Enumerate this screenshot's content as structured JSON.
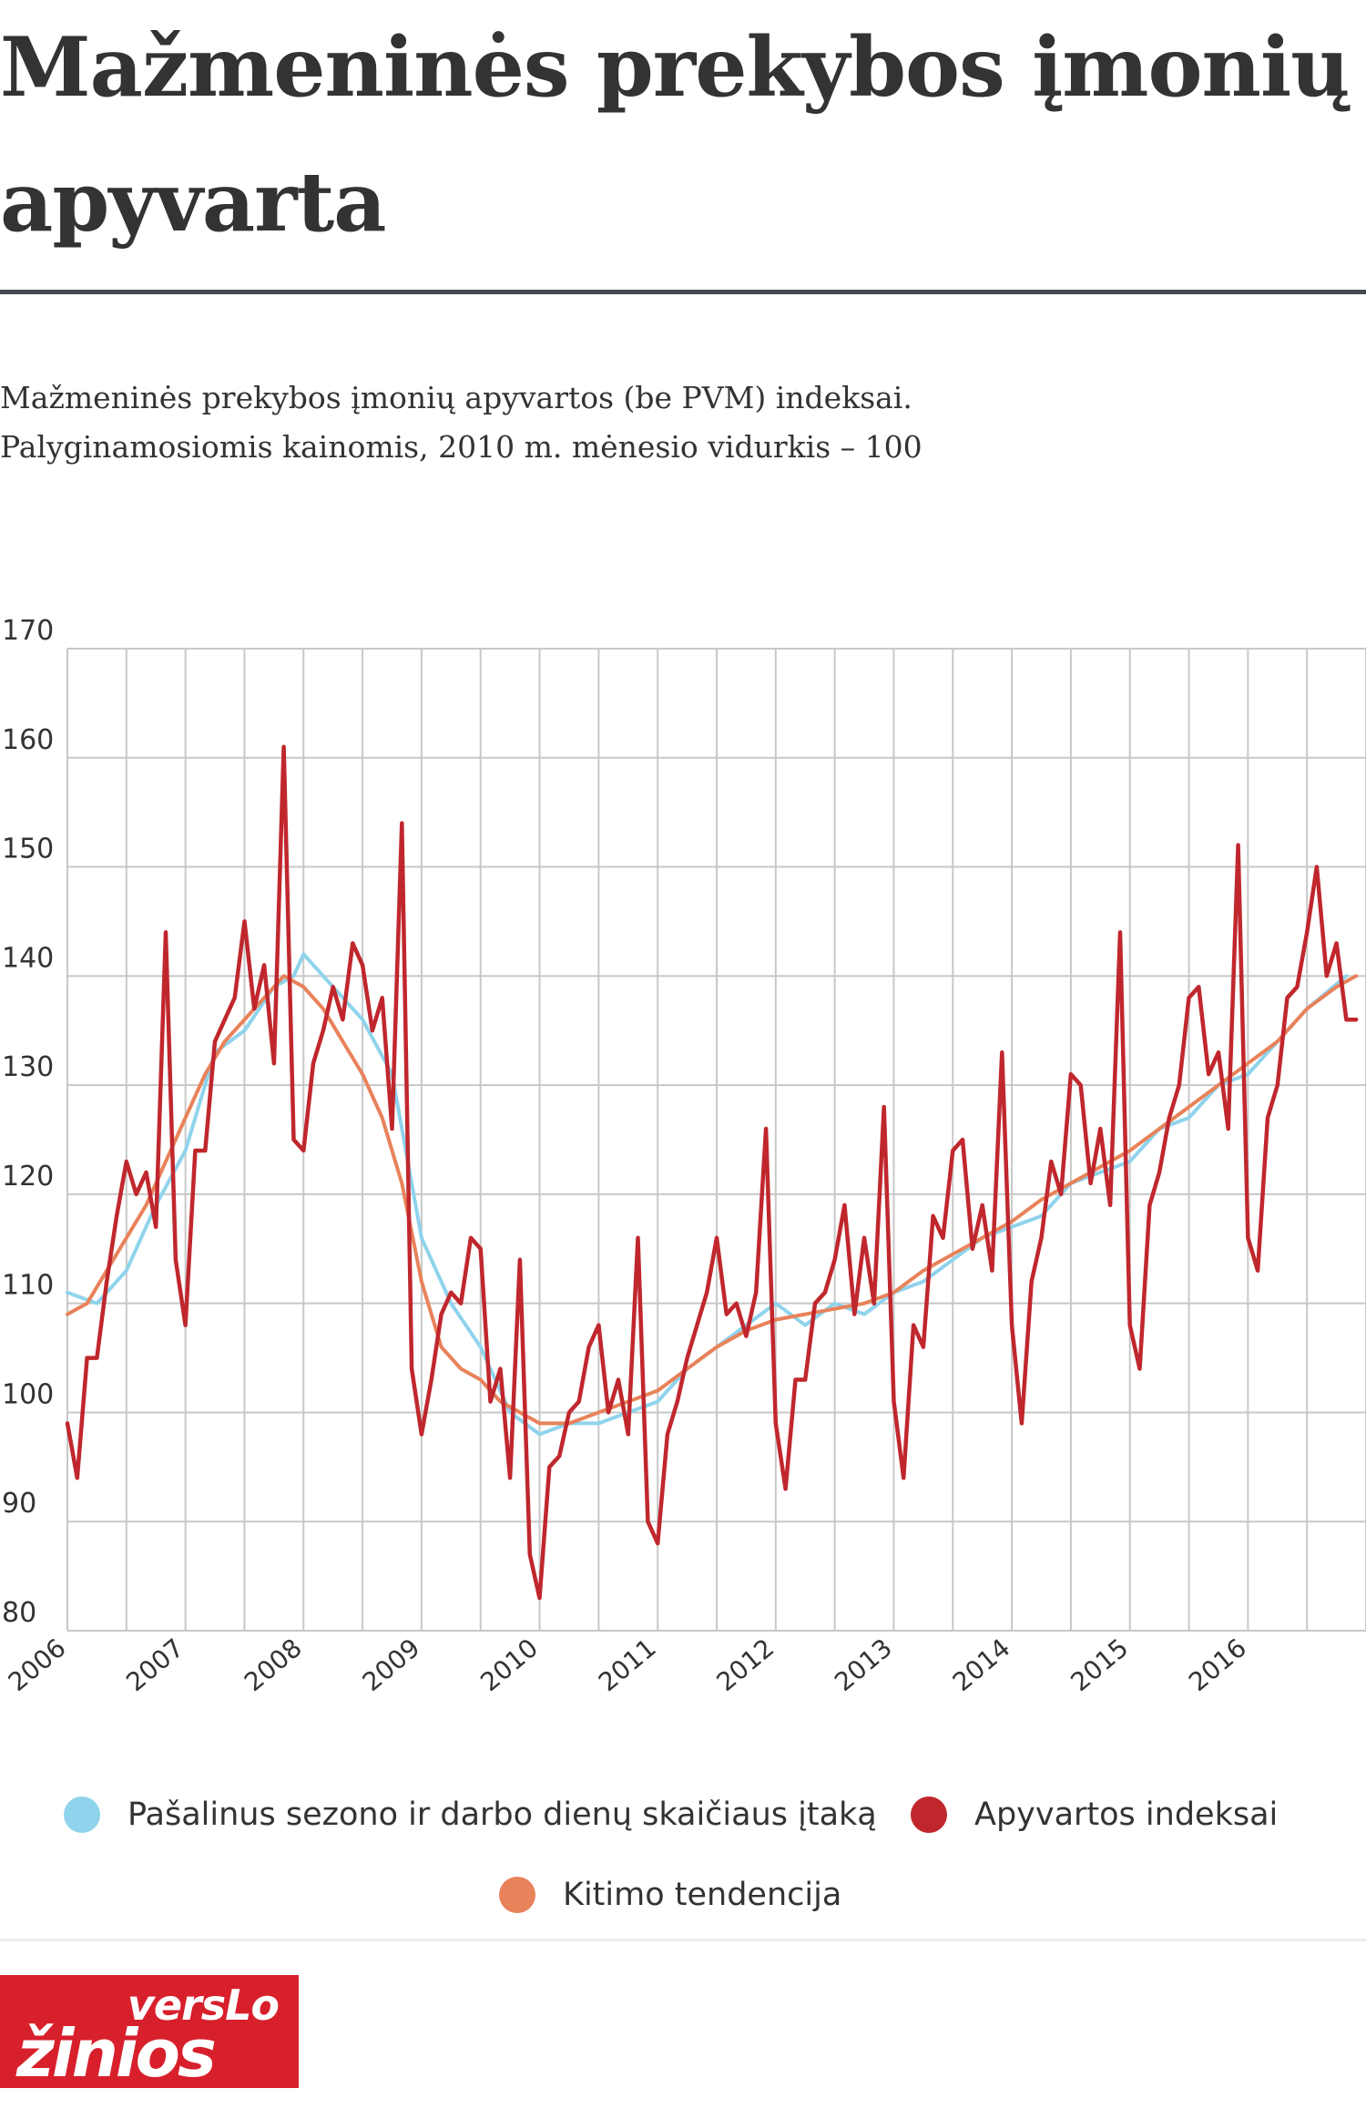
{
  "title": "Mažmeninės prekybos įmonių apyvarta",
  "subtitle_lines": [
    "Mažmeninės prekybos įmonių apyvartos (be PVM) indeksai.",
    "Palyginamosiomis kainomis, 2010 m. mėnesio vidurkis – 100"
  ],
  "legend": {
    "seasonal": "Pašalinus sezono ir darbo dienų skaičiaus įtaką",
    "turnover": "Apyvartos indeksai",
    "trend": "Kitimo tendencija"
  },
  "logo": {
    "line1": "versLo",
    "line2": "žinios"
  },
  "colors": {
    "seasonal": "#8fd3ec",
    "turnover": "#c0272d",
    "trend": "#e8825a",
    "grid": "#c8c8c8",
    "text": "#333333",
    "logo_bg": "#d81f2c"
  },
  "chart_data": {
    "type": "line",
    "ylim": [
      80,
      170
    ],
    "yticks": [
      80,
      90,
      100,
      110,
      120,
      130,
      140,
      150,
      160,
      170
    ],
    "x_unit": "year",
    "xlim": [
      2006,
      2017
    ],
    "xtick_labels": [
      "2006",
      "2007",
      "2008",
      "2009",
      "2010",
      "2011",
      "2012",
      "2013",
      "2014",
      "2015",
      "2016"
    ],
    "grid": true,
    "legend_position": "bottom",
    "series": [
      {
        "name": "Apyvartos indeksai",
        "key": "turnover",
        "x": [
          2006.0,
          2006.083,
          2006.167,
          2006.25,
          2006.333,
          2006.417,
          2006.5,
          2006.583,
          2006.667,
          2006.75,
          2006.833,
          2006.917,
          2007.0,
          2007.083,
          2007.167,
          2007.25,
          2007.333,
          2007.417,
          2007.5,
          2007.583,
          2007.667,
          2007.75,
          2007.833,
          2007.917,
          2008.0,
          2008.083,
          2008.167,
          2008.25,
          2008.333,
          2008.417,
          2008.5,
          2008.583,
          2008.667,
          2008.75,
          2008.833,
          2008.917,
          2009.0,
          2009.083,
          2009.167,
          2009.25,
          2009.333,
          2009.417,
          2009.5,
          2009.583,
          2009.667,
          2009.75,
          2009.833,
          2009.917,
          2010.0,
          2010.083,
          2010.167,
          2010.25,
          2010.333,
          2010.417,
          2010.5,
          2010.583,
          2010.667,
          2010.75,
          2010.833,
          2010.917,
          2011.0,
          2011.083,
          2011.167,
          2011.25,
          2011.333,
          2011.417,
          2011.5,
          2011.583,
          2011.667,
          2011.75,
          2011.833,
          2011.917,
          2012.0,
          2012.083,
          2012.167,
          2012.25,
          2012.333,
          2012.417,
          2012.5,
          2012.583,
          2012.667,
          2012.75,
          2012.833,
          2012.917,
          2013.0,
          2013.083,
          2013.167,
          2013.25,
          2013.333,
          2013.417,
          2013.5,
          2013.583,
          2013.667,
          2013.75,
          2013.833,
          2013.917,
          2014.0,
          2014.083,
          2014.167,
          2014.25,
          2014.333,
          2014.417,
          2014.5,
          2014.583,
          2014.667,
          2014.75,
          2014.833,
          2014.917,
          2015.0,
          2015.083,
          2015.167,
          2015.25,
          2015.333,
          2015.417,
          2015.5,
          2015.583,
          2015.667,
          2015.75,
          2015.833,
          2015.917,
          2016.0,
          2016.083,
          2016.167,
          2016.25,
          2016.333,
          2016.417,
          2016.5,
          2016.583,
          2016.667,
          2016.75,
          2016.833,
          2016.917
        ],
        "values": [
          99,
          94,
          105,
          105,
          112,
          118,
          123,
          120,
          122,
          117,
          144,
          114,
          108,
          124,
          124,
          134,
          136,
          138,
          145,
          137,
          141,
          132,
          161,
          125,
          124,
          132,
          135,
          139,
          136,
          143,
          141,
          135,
          138,
          126,
          154,
          104,
          98,
          103,
          109,
          111,
          110,
          116,
          115,
          101,
          104,
          94,
          114,
          87,
          83,
          95,
          96,
          100,
          101,
          106,
          108,
          100,
          103,
          98,
          116,
          90,
          88,
          98,
          101,
          105,
          108,
          111,
          116,
          109,
          110,
          107,
          111,
          126,
          99,
          93,
          103,
          103,
          110,
          111,
          114,
          119,
          109,
          116,
          110,
          128,
          101,
          94,
          108,
          106,
          118,
          116,
          124,
          125,
          115,
          119,
          113,
          133,
          108,
          99,
          112,
          116,
          123,
          120,
          131,
          130,
          121,
          126,
          119,
          144,
          108,
          104,
          119,
          122,
          127,
          130,
          138,
          139,
          131,
          133,
          126,
          152,
          116,
          113,
          127,
          130,
          138,
          139,
          144,
          150,
          140,
          143,
          136,
          136
        ]
      },
      {
        "name": "Pašalinus sezono ir darbo dienų skaičiaus įtaką",
        "key": "seasonal",
        "x": [
          2006.0,
          2006.25,
          2006.5,
          2006.75,
          2007.0,
          2007.25,
          2007.5,
          2007.75,
          2007.917,
          2008.0,
          2008.25,
          2008.5,
          2008.75,
          2009.0,
          2009.25,
          2009.5,
          2009.75,
          2010.0,
          2010.25,
          2010.5,
          2010.75,
          2011.0,
          2011.25,
          2011.5,
          2011.75,
          2012.0,
          2012.25,
          2012.5,
          2012.75,
          2013.0,
          2013.25,
          2013.5,
          2013.75,
          2014.0,
          2014.25,
          2014.5,
          2014.75,
          2015.0,
          2015.25,
          2015.5,
          2015.75,
          2016.0,
          2016.25,
          2016.5,
          2016.833
        ],
        "values": [
          111,
          110,
          113,
          119,
          124,
          133,
          135,
          139,
          140,
          142,
          139,
          136,
          131,
          116,
          110,
          106,
          100,
          98,
          99,
          99,
          100,
          101,
          104,
          106,
          108,
          110,
          108,
          110,
          109,
          111,
          112,
          114,
          116,
          117,
          118,
          121,
          122,
          123,
          126,
          127,
          130,
          131,
          134,
          137,
          140
        ]
      },
      {
        "name": "Kitimo tendencija",
        "key": "trend",
        "x": [
          2006.0,
          2006.167,
          2006.333,
          2006.5,
          2006.667,
          2006.833,
          2007.0,
          2007.167,
          2007.333,
          2007.5,
          2007.667,
          2007.833,
          2008.0,
          2008.167,
          2008.333,
          2008.5,
          2008.667,
          2008.833,
          2009.0,
          2009.167,
          2009.333,
          2009.5,
          2009.667,
          2009.833,
          2010.0,
          2010.25,
          2010.5,
          2010.75,
          2011.0,
          2011.25,
          2011.5,
          2011.75,
          2012.0,
          2012.25,
          2012.5,
          2012.75,
          2013.0,
          2013.25,
          2013.5,
          2013.75,
          2014.0,
          2014.25,
          2014.5,
          2014.75,
          2015.0,
          2015.25,
          2015.5,
          2015.75,
          2016.0,
          2016.25,
          2016.5,
          2016.75,
          2016.917
        ],
        "values": [
          109,
          110,
          113,
          116,
          119,
          123,
          127,
          131,
          134,
          136,
          138,
          140,
          139,
          137,
          134,
          131,
          127,
          121,
          112,
          106,
          104,
          103,
          101,
          100,
          99,
          99,
          100,
          101,
          102,
          104,
          106,
          107.5,
          108.5,
          109,
          109.5,
          110,
          111,
          113,
          114.5,
          116,
          117.5,
          119.5,
          121,
          122.5,
          124,
          126,
          128,
          130,
          132,
          134,
          137,
          139,
          140
        ]
      }
    ]
  }
}
